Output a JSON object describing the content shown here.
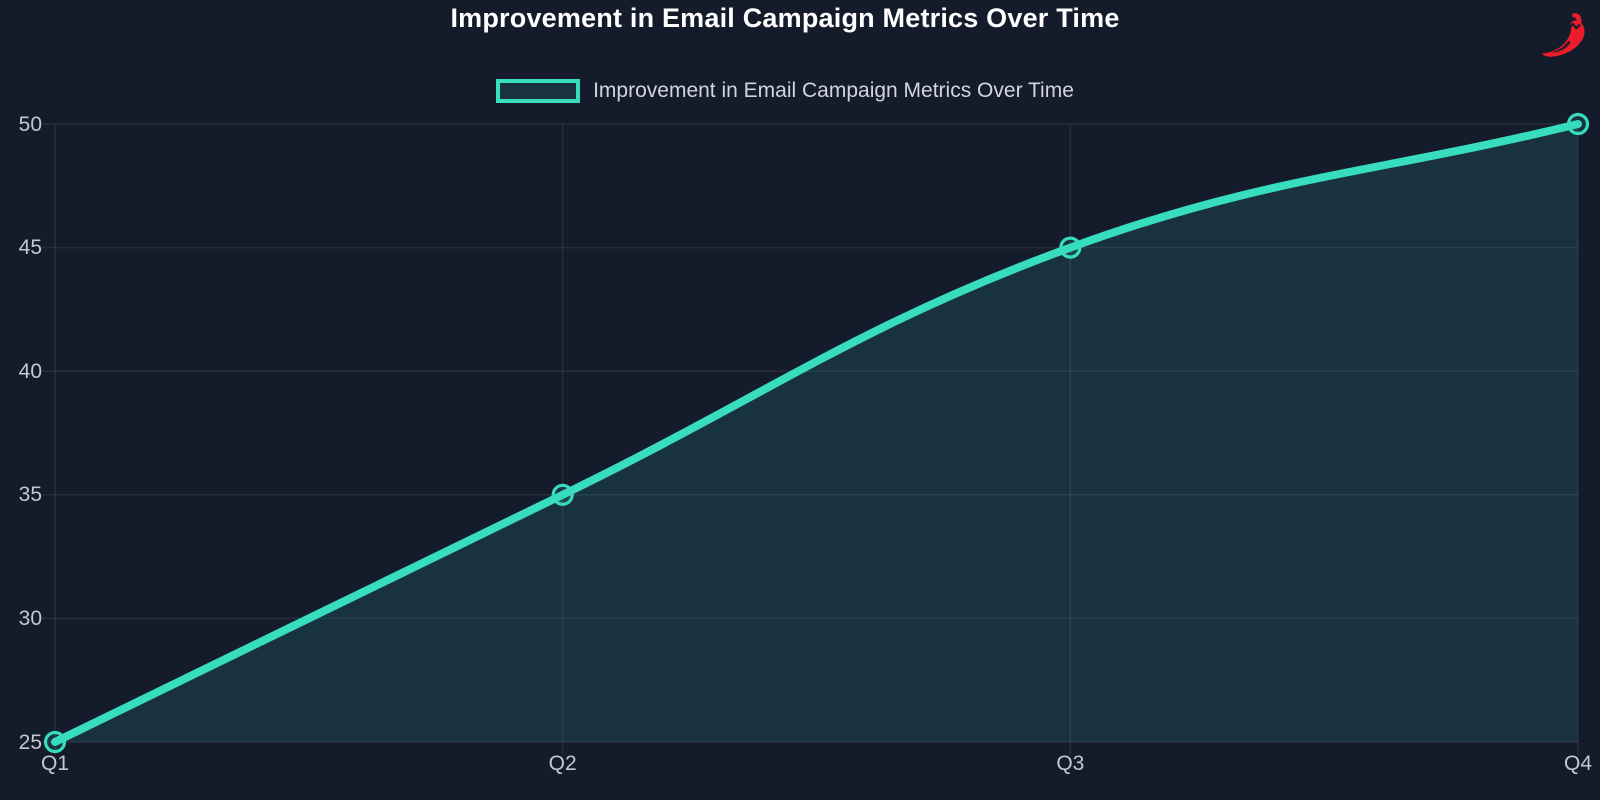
{
  "page": {
    "background": "#141b2a"
  },
  "header": {
    "title": "Improvement in Email Campaign Metrics Over Time"
  },
  "legend": {
    "label": "Improvement in Email Campaign Metrics Over Time"
  },
  "branding": {
    "logo": "chili-pepper",
    "color": "#ee1c2b"
  },
  "chart_data": {
    "type": "line",
    "title": "Improvement in Email Campaign Metrics Over Time",
    "series_name": "Improvement in Email Campaign Metrics Over Time",
    "categories": [
      "Q1",
      "Q2",
      "Q3",
      "Q4"
    ],
    "values": [
      25,
      35,
      45,
      50
    ],
    "xlabel": "",
    "ylabel": "",
    "ylim": [
      25,
      50
    ],
    "yticks": [
      25,
      30,
      35,
      40,
      45,
      50
    ],
    "grid": true,
    "legend_position": "top",
    "curve": "smooth-tension-0.4",
    "marker": "open-circle",
    "line_color": "#38dcbf",
    "fill_color": "rgba(56,220,191,0.13)",
    "grid_color": "rgba(255,255,255,0.08)",
    "tick_label_color": "#c3c7d1"
  }
}
